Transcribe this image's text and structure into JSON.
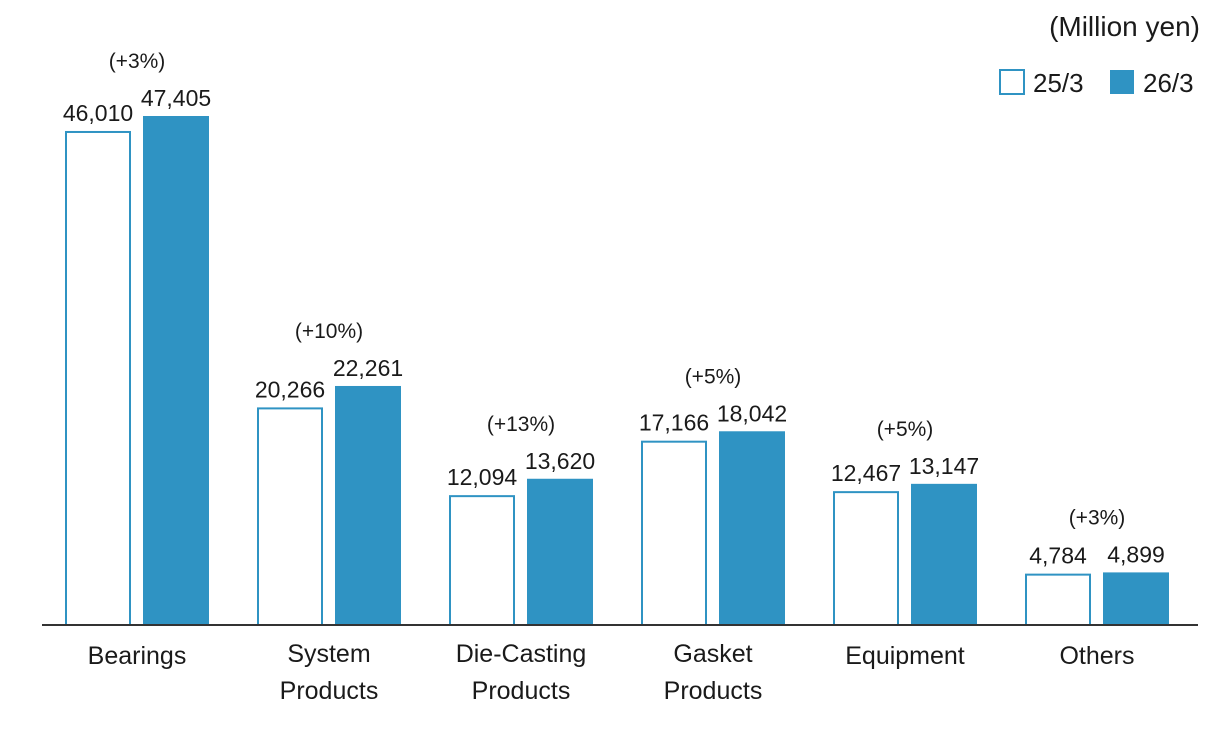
{
  "chart_data": {
    "type": "bar",
    "title": "",
    "unit_label": "(Million yen)",
    "categories": [
      [
        "Bearings"
      ],
      [
        "System",
        "Products"
      ],
      [
        "Die-Casting",
        "Products"
      ],
      [
        "Gasket",
        "Products"
      ],
      [
        "Equipment"
      ],
      [
        "Others"
      ]
    ],
    "series": [
      {
        "name": "25/3",
        "values": [
          46010,
          20266,
          12094,
          17166,
          12467,
          4784
        ],
        "labels": [
          "46,010",
          "20,266",
          "12,094",
          "17,166",
          "12,467",
          "4,784"
        ]
      },
      {
        "name": "26/3",
        "values": [
          47405,
          22261,
          13620,
          18042,
          13147,
          4899
        ],
        "labels": [
          "47,405",
          "22,261",
          "13,620",
          "18,042",
          "13,147",
          "4,899"
        ]
      }
    ],
    "changes": [
      "(+3%)",
      "(+10%)",
      "(+13%)",
      "(+5%)",
      "(+5%)",
      "(+3%)"
    ],
    "ylim": [
      0,
      47405
    ],
    "grid": false,
    "legend_position": "top-right",
    "colors": {
      "series_fill": [
        "#ffffff",
        "#2f93c3"
      ],
      "series_stroke": [
        "#2f93c3",
        "#2f93c3"
      ],
      "axis": "#333333"
    }
  }
}
